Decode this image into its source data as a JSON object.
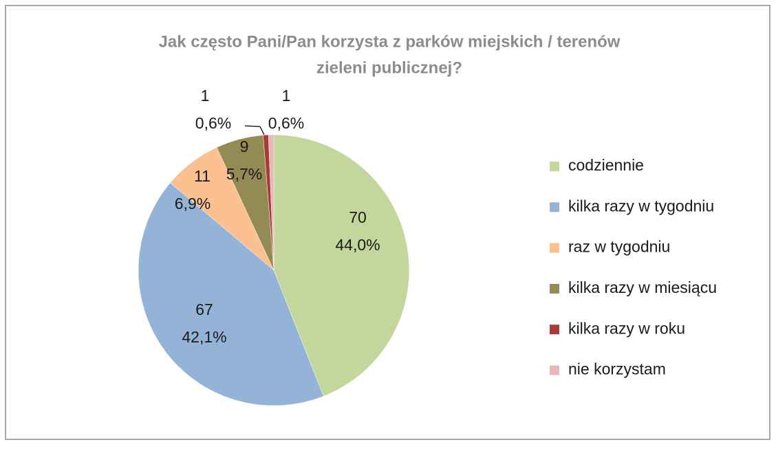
{
  "chart_data": {
    "type": "pie",
    "title": [
      "Jak często Pani/Pan korzysta z parków miejskich / terenów",
      "zieleni publicznej?"
    ],
    "categories": [
      "codziennie",
      "kilka razy w tygodniu",
      "raz w tygodniu",
      "kilka razy w miesiącu",
      "kilka razy w roku",
      "nie korzystam"
    ],
    "values": [
      70,
      67,
      11,
      9,
      1,
      1
    ],
    "percentage_labels": [
      "44,0%",
      "42,1%",
      "6,9%",
      "5,7%",
      "0,6%",
      "0,6%"
    ],
    "colors": [
      "#c3d69b",
      "#95b3d7",
      "#fac090",
      "#948a54",
      "#a83a38",
      "#e6b9b8"
    ],
    "legend": "right"
  }
}
